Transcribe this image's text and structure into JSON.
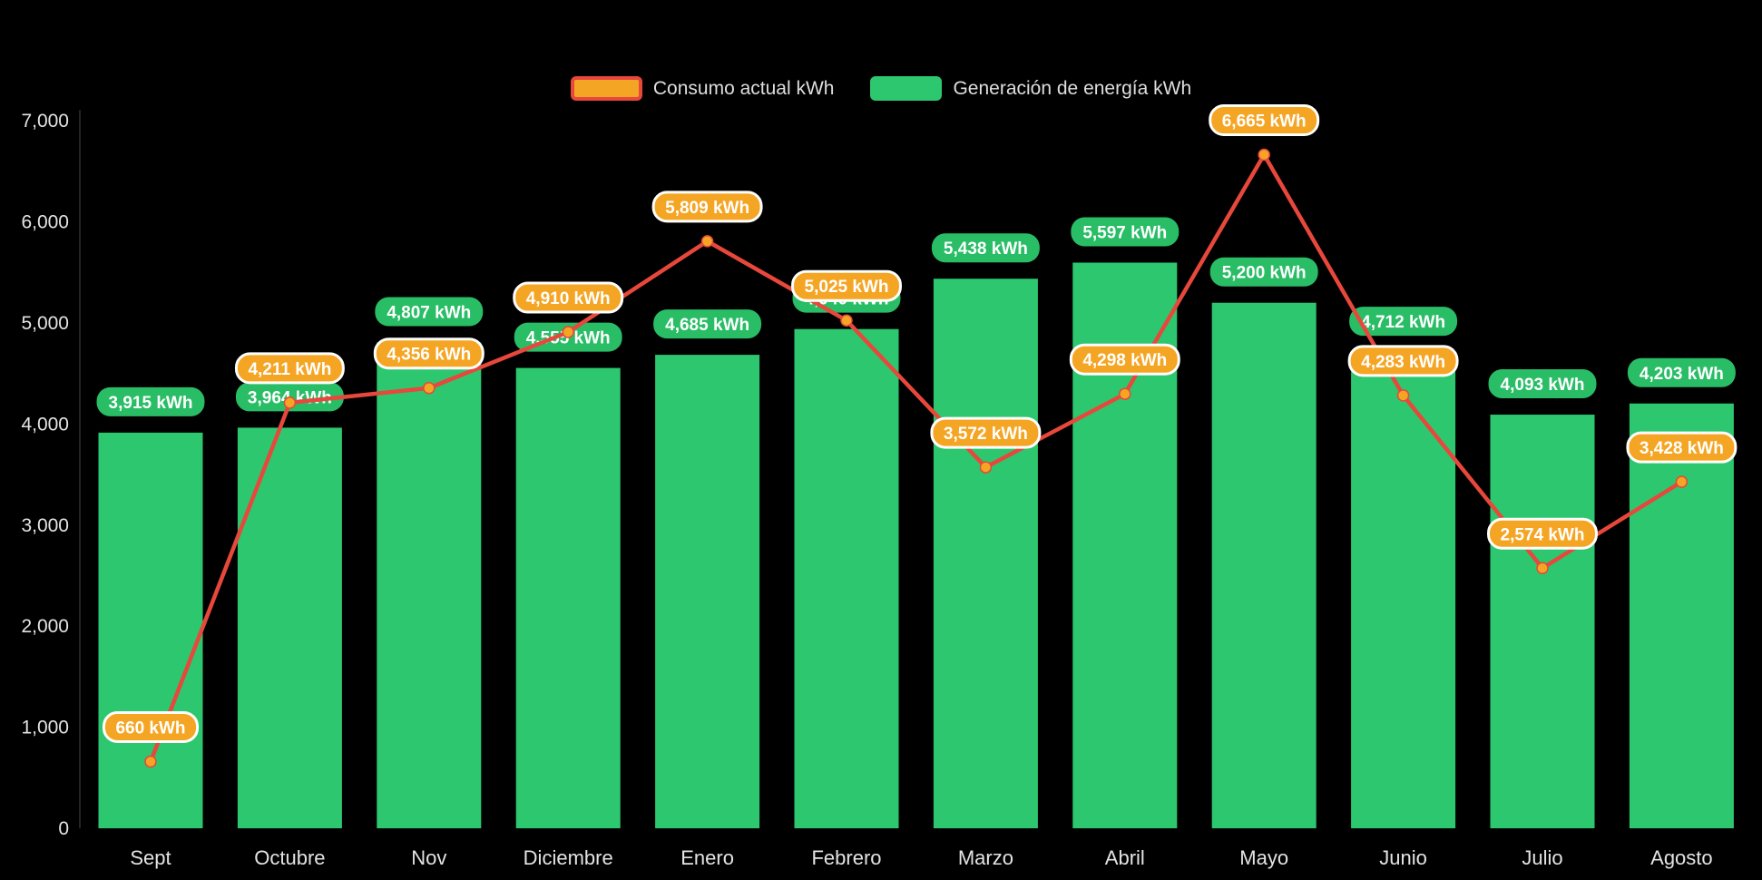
{
  "colors": {
    "background": "#000000",
    "bar": "#2DC76F",
    "bar_label_bg": "#29BD66",
    "line": "#E8473C",
    "marker": "#F5A524",
    "consumo_badge_bg": "#F5A524",
    "consumo_badge_border": "#FFFFFF",
    "badge_text": "#FFFFFF",
    "axis_text": "#E3E3E3",
    "legend_text": "#DEDEDE",
    "axis_line": "#CFCFCF"
  },
  "legend": [
    {
      "label": "Consumo actual kWh",
      "swatch_fill": "#F5A524",
      "swatch_border": "#E8473C"
    },
    {
      "label": "Generación de energía kWh",
      "swatch_fill": "#2DC76F",
      "swatch_border": "#2DC76F"
    }
  ],
  "chart_data": {
    "type": "bar+line",
    "title": "",
    "xlabel": "",
    "ylabel": "",
    "categories": [
      "Sept",
      "Octubre",
      "Nov",
      "Diciembre",
      "Enero",
      "Febrero",
      "Marzo",
      "Abril",
      "Mayo",
      "Junio",
      "Julio",
      "Agosto"
    ],
    "series": [
      {
        "name": "Consumo actual kWh",
        "type": "line",
        "values": [
          660,
          4211,
          4356,
          4910,
          5809,
          5025,
          3572,
          4298,
          6665,
          4283,
          2574,
          3428
        ],
        "labels": [
          "660 kWh",
          "4,211 kWh",
          "4,356 kWh",
          "4,910 kWh",
          "5,809 kWh",
          "5,025 kWh",
          "3,572 kWh",
          "4,298 kWh",
          "6,665 kWh",
          "4,283 kWh",
          "2,574 kWh",
          "3,428 kWh"
        ]
      },
      {
        "name": "Generación de energía kWh",
        "type": "bar",
        "values": [
          3915,
          3964,
          4807,
          4555,
          4685,
          4940,
          5438,
          5597,
          5200,
          4712,
          4093,
          4203
        ],
        "labels": [
          "3,915 kWh",
          "3,964 kWh",
          "4,807 kWh",
          "4,555 kWh",
          "4,685 kWh",
          "4,940 kWh",
          "5,438 kWh",
          "5,597 kWh",
          "5,200 kWh",
          "4,712 kWh",
          "4,093 kWh",
          "4,203 kWh"
        ]
      }
    ],
    "ylim": [
      0,
      7000
    ],
    "yticks": [
      0,
      1000,
      2000,
      3000,
      4000,
      5000,
      6000,
      7000
    ],
    "ytick_labels": [
      "0",
      "1,000",
      "2,000",
      "3,000",
      "4,000",
      "5,000",
      "6,000",
      "7,000"
    ],
    "grid": false,
    "legend_position": "top",
    "unit_suffix": " kWh"
  }
}
